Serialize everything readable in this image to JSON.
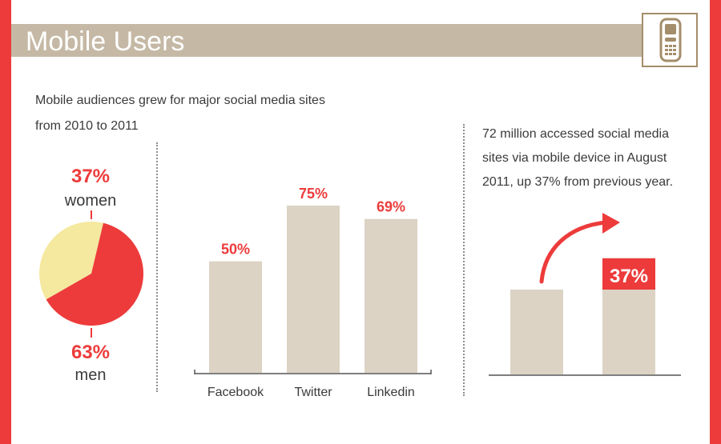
{
  "header": {
    "title": "Mobile Users",
    "icon": "mobile-phone-icon"
  },
  "intro": {
    "line1": "Mobile audiences grew for major social media sites",
    "line2": "from 2010 to 2011"
  },
  "right_text": {
    "line1": "72 million accessed social media",
    "line2": "sites via mobile device in August",
    "line3": "2011, up 37% from previous year."
  },
  "colors": {
    "red": "#ed3b3b",
    "tan": "#c5b9a5",
    "bar": "#dcd3c4",
    "yellow": "#f5e89f",
    "icon_brown": "#a48d6a"
  },
  "chart_data": [
    {
      "type": "pie",
      "labels": [
        "women",
        "men"
      ],
      "values": [
        37,
        63
      ],
      "value_labels": [
        "37%",
        "63%"
      ]
    },
    {
      "type": "bar",
      "categories": [
        "Facebook",
        "Twitter",
        "Linkedin"
      ],
      "values": [
        50,
        75,
        69
      ],
      "value_labels": [
        "50%",
        "75%",
        "69%"
      ]
    },
    {
      "type": "bar",
      "categories": [
        "",
        ""
      ],
      "values": [
        100,
        137
      ],
      "value_labels": [
        "",
        "37%"
      ],
      "annotation": "37%"
    }
  ]
}
